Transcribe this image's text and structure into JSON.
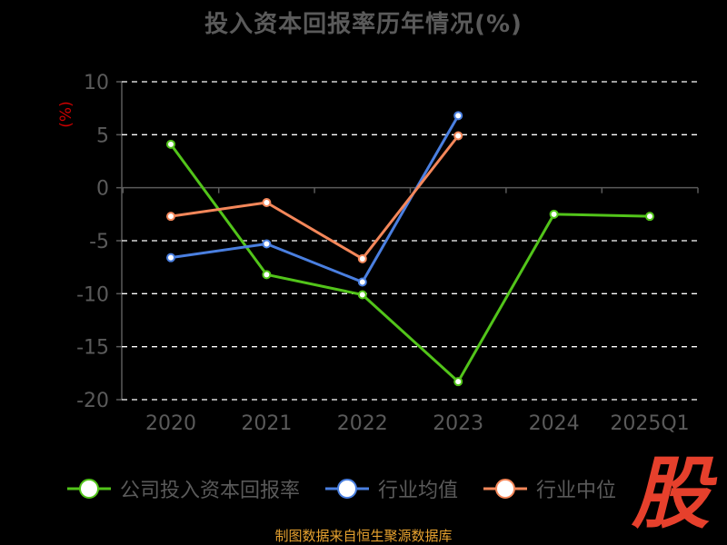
{
  "page": {
    "title": "投入资本回报率历年情况(%)",
    "source": "制图数据来自恒生聚源数据库",
    "logo_text": "股"
  },
  "chart_data": {
    "type": "line",
    "title": "投入资本回报率历年情况(%)",
    "xlabel": "",
    "ylabel": "(%)",
    "categories": [
      "2020",
      "2021",
      "2022",
      "2023",
      "2024",
      "2025Q1"
    ],
    "ylim": [
      -20,
      10
    ],
    "yticks": [
      10,
      5,
      0,
      -5,
      -10,
      -15,
      -20
    ],
    "ytick_labels": [
      "10",
      "5",
      "0",
      "-5",
      "-10",
      "-15",
      "-20"
    ],
    "grid": true,
    "legend_position": "bottom",
    "series": [
      {
        "name": "公司投入资本回报率",
        "color": "#52c41a",
        "values": [
          4.1,
          -8.2,
          -10.1,
          -18.3,
          -2.5,
          -2.7
        ]
      },
      {
        "name": "行业均值",
        "color": "#4a7fe0",
        "values": [
          -6.6,
          -5.3,
          -8.9,
          6.8,
          null,
          null
        ]
      },
      {
        "name": "行业中位",
        "color": "#f4875a",
        "values": [
          -2.7,
          -1.4,
          -6.7,
          4.9,
          null,
          null
        ]
      }
    ],
    "colors": {
      "axis": "#5a5a5a",
      "grid": "#ffffff",
      "ylabel": "#cc0000"
    }
  }
}
